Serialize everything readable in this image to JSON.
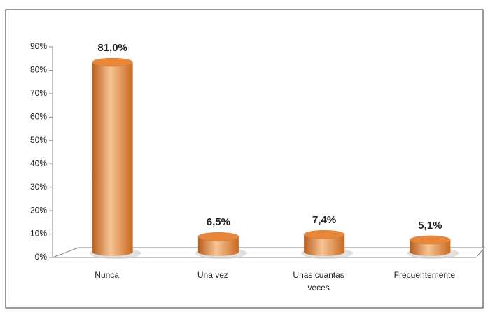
{
  "chart_data": {
    "type": "bar",
    "categories": [
      "Nunca",
      "Una vez",
      "Unas cuantas veces",
      "Frecuentemente"
    ],
    "values": [
      81.0,
      6.5,
      7.4,
      5.1
    ],
    "value_labels": [
      "81,0%",
      "6,5%",
      "7,4%",
      "5,1%"
    ],
    "color": "#e8863a",
    "ylim": [
      0,
      90
    ],
    "yticks": [
      {
        "value": 0,
        "label": "0%"
      },
      {
        "value": 10,
        "label": "10%"
      },
      {
        "value": 20,
        "label": "20%"
      },
      {
        "value": 30,
        "label": "30%"
      },
      {
        "value": 40,
        "label": "40%"
      },
      {
        "value": 50,
        "label": "50%"
      },
      {
        "value": 60,
        "label": "60%"
      },
      {
        "value": 70,
        "label": "70%"
      },
      {
        "value": 80,
        "label": "80%"
      },
      {
        "value": 90,
        "label": "90%"
      }
    ]
  }
}
